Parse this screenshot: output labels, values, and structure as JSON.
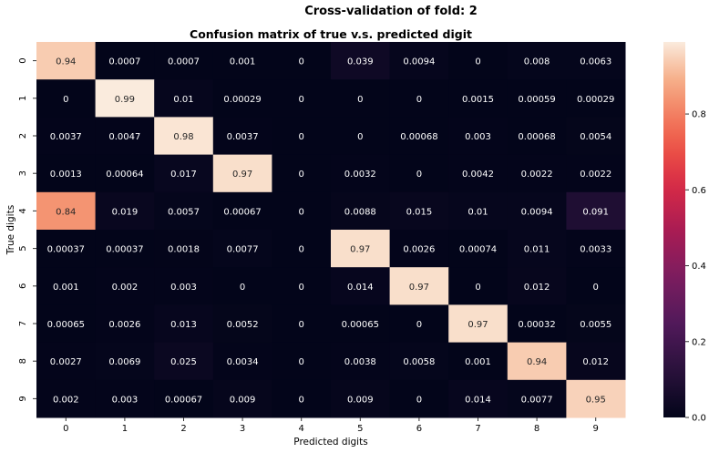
{
  "suptitle": "Cross-validation of fold: 2",
  "chart_data": {
    "type": "heatmap",
    "title": "Confusion matrix of true v.s. predicted digit",
    "xlabel": "Predicted digits",
    "ylabel": "True digits",
    "x_categories": [
      "0",
      "1",
      "2",
      "3",
      "4",
      "5",
      "6",
      "7",
      "8",
      "9"
    ],
    "y_categories": [
      "0",
      "1",
      "2",
      "3",
      "4",
      "5",
      "6",
      "7",
      "8",
      "9"
    ],
    "values": [
      [
        0.94,
        0.0007,
        0.0007,
        0.001,
        0,
        0.039,
        0.0094,
        0,
        0.008,
        0.0063
      ],
      [
        0,
        0.99,
        0.01,
        0.00029,
        0,
        0,
        0,
        0.0015,
        0.00059,
        0.00029
      ],
      [
        0.0037,
        0.0047,
        0.98,
        0.0037,
        0,
        0,
        0.00068,
        0.003,
        0.00068,
        0.0054
      ],
      [
        0.0013,
        0.00064,
        0.017,
        0.97,
        0,
        0.0032,
        0,
        0.0042,
        0.0022,
        0.0022
      ],
      [
        0.84,
        0.019,
        0.0057,
        0.00067,
        0,
        0.0088,
        0.015,
        0.01,
        0.0094,
        0.091
      ],
      [
        0.00037,
        0.00037,
        0.0018,
        0.0077,
        0,
        0.97,
        0.0026,
        0.00074,
        0.011,
        0.0033
      ],
      [
        0.001,
        0.002,
        0.003,
        0,
        0,
        0.014,
        0.97,
        0,
        0.012,
        0
      ],
      [
        0.00065,
        0.0026,
        0.013,
        0.0052,
        0,
        0.00065,
        0,
        0.97,
        0.00032,
        0.0055
      ],
      [
        0.0027,
        0.0069,
        0.025,
        0.0034,
        0,
        0.0038,
        0.0058,
        0.001,
        0.94,
        0.012
      ],
      [
        0.002,
        0.003,
        0.00067,
        0.009,
        0,
        0.009,
        0,
        0.014,
        0.0077,
        0.95
      ]
    ],
    "colorbar": {
      "colormap": "rocket",
      "range": [
        0,
        0.99
      ],
      "ticks": [
        0.0,
        0.2,
        0.4,
        0.6,
        0.8
      ],
      "tick_labels": [
        "0.0",
        "0.2",
        "0.4",
        "0.6",
        "0.8"
      ]
    }
  }
}
